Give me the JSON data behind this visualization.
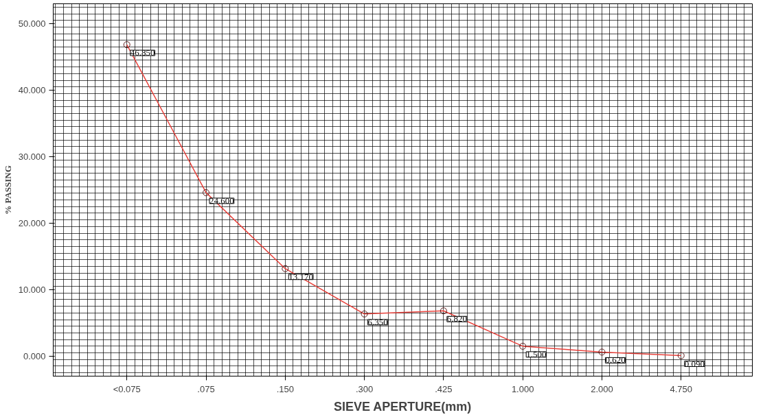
{
  "chart_data": {
    "type": "line",
    "xlabel": "SIEVE APERTURE(mm)",
    "ylabel": "% PASSING",
    "categories": [
      "<0.075",
      ".075",
      ".150",
      ".300",
      ".425",
      "1.000",
      "2.000",
      "4.750"
    ],
    "series": [
      {
        "color": "#e8403a",
        "values": [
          46.85,
          24.6,
          13.17,
          6.35,
          6.82,
          1.5,
          0.62,
          0.09
        ],
        "value_labels": [
          "46.850",
          "24.600",
          "13.170",
          "6.350",
          "6.820",
          "1.500",
          "0.620",
          "0.090"
        ]
      }
    ],
    "ylim": [
      -3,
      53
    ],
    "yticks": [
      {
        "value": 0,
        "label": "0.000"
      },
      {
        "value": 10,
        "label": "10.000"
      },
      {
        "value": 20,
        "label": "20.000"
      },
      {
        "value": 30,
        "label": "30.000"
      },
      {
        "value": 40,
        "label": "40.000"
      },
      {
        "value": 50,
        "label": "50.000"
      }
    ],
    "grid": true,
    "marker": "circle",
    "line_style": "solid"
  }
}
